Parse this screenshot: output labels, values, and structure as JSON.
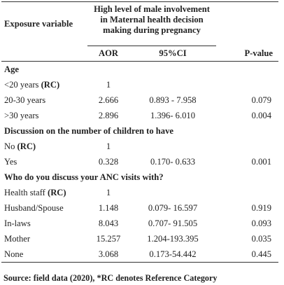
{
  "header": {
    "exposure_label": "Exposure variable",
    "group_label_line1": "High level of male involvement",
    "group_label_line2": "in Maternal health decision",
    "group_label_line3": "making during pregnancy",
    "aor_label": "AOR",
    "ci_label": "95%CI",
    "pvalue_label": "P-value"
  },
  "sections": {
    "age": {
      "title": "Age",
      "rows": [
        {
          "label": "<20 years ",
          "rc": "(RC)",
          "aor": "1",
          "ci": "",
          "p": ""
        },
        {
          "label": "20-30 years",
          "rc": "",
          "aor": "2.666",
          "ci": "0.893 - 7.958",
          "p": "0.079"
        },
        {
          "label": ">30 years",
          "rc": "",
          "aor": "2.896",
          "ci": "1.396- 6.010",
          "p": "0.004"
        }
      ]
    },
    "children": {
      "title": "Discussion on the number of children to have",
      "rows": [
        {
          "label": "No ",
          "rc": "(RC)",
          "aor": "1",
          "ci": "",
          "p": ""
        },
        {
          "label": "Yes",
          "rc": "",
          "aor": "0.328",
          "ci": "0.170- 0.633",
          "p": "0.001"
        }
      ]
    },
    "anc": {
      "title": "Who do you discuss your ANC visits with?",
      "rows": [
        {
          "label": "Health staff ",
          "rc": "(RC)",
          "aor": "1",
          "ci": "",
          "p": ""
        },
        {
          "label": "Husband/Spouse",
          "rc": "",
          "aor": "1.148",
          "ci": "0.079- 16.597",
          "p": "0.919"
        },
        {
          "label": "In-laws",
          "rc": "",
          "aor": "8.043",
          "ci": "0.707- 91.505",
          "p": "0.093"
        },
        {
          "label": "Mother",
          "rc": "",
          "aor": "15.257",
          "ci": "1.204-193.395",
          "p": "0.035"
        },
        {
          "label": "None",
          "rc": "",
          "aor": "3.068",
          "ci": "0.173-54.442",
          "p": "0.445"
        }
      ]
    }
  },
  "footer": {
    "source": "Source: field data (2020), *RC denotes Reference Category"
  }
}
